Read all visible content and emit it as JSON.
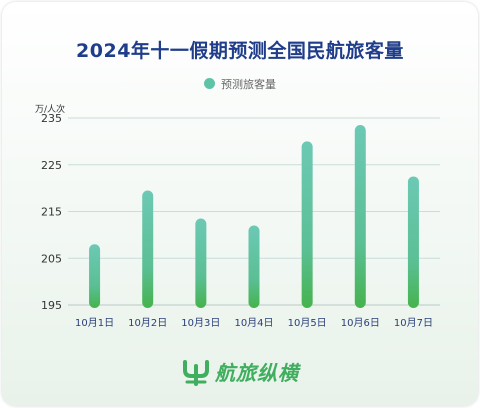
{
  "chart_data": {
    "type": "bar",
    "title": "2024年十一假期预测全国民航旅客量",
    "ylabel": "万/人次",
    "xlabel": "",
    "categories": [
      "10月1日",
      "10月2日",
      "10月3日",
      "10月4日",
      "10月5日",
      "10月6日",
      "10月7日"
    ],
    "series": [
      {
        "name": "预测旅客量",
        "values": [
          208,
          219.5,
          213.5,
          212,
          230,
          233.5,
          222.5
        ]
      }
    ],
    "ylim": [
      195,
      235
    ],
    "yticks": [
      195,
      205,
      215,
      225,
      235
    ],
    "grid": true,
    "legend": "top-center"
  },
  "colors": {
    "title": "#1f3d8a",
    "bar_top": "#6cc9b4",
    "bar_bottom": "#45b34d",
    "grid": "#c9ddd9",
    "logo": "#3fae5e"
  },
  "logo": {
    "text": "航旅纵横",
    "icon": "hangluzongheng-logo-icon"
  }
}
